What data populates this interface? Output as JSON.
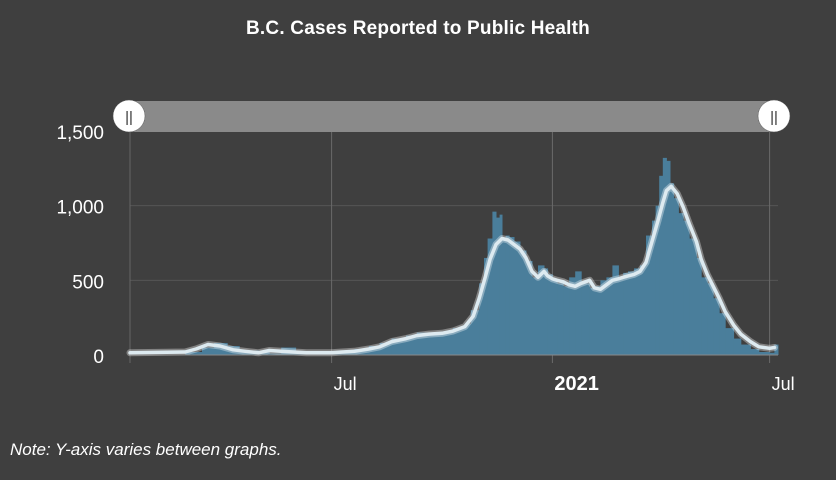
{
  "chart_data": {
    "type": "bar",
    "title": "B.C. Cases Reported to Public Health",
    "xlabel": "",
    "ylabel": "",
    "ylim": [
      0,
      1500
    ],
    "yticks": [
      0,
      500,
      1000,
      1500
    ],
    "ytick_labels": [
      "0",
      "500",
      "1,000",
      "1,500"
    ],
    "xticks": [
      {
        "date": "2020-07-01",
        "label": "Jul",
        "bold": false
      },
      {
        "date": "2021-01-01",
        "label": "2021",
        "bold": true
      },
      {
        "date": "2021-07-01",
        "label": "Jul",
        "bold": false
      }
    ],
    "xrange": [
      "2020-01-15",
      "2021-07-08"
    ],
    "grid": true,
    "series": [
      {
        "kind": "bar",
        "color": "#4a7e9b",
        "x": [
          "2020-01-15",
          "2020-03-01",
          "2020-03-15",
          "2020-03-25",
          "2020-04-05",
          "2020-04-15",
          "2020-05-01",
          "2020-05-10",
          "2020-05-20",
          "2020-06-01",
          "2020-06-15",
          "2020-07-01",
          "2020-07-10",
          "2020-07-20",
          "2020-08-01",
          "2020-08-10",
          "2020-08-20",
          "2020-09-01",
          "2020-09-10",
          "2020-09-20",
          "2020-10-01",
          "2020-10-10",
          "2020-10-20",
          "2020-10-25",
          "2020-11-01",
          "2020-11-05",
          "2020-11-08",
          "2020-11-12",
          "2020-11-15",
          "2020-11-18",
          "2020-11-20",
          "2020-11-23",
          "2020-11-26",
          "2020-11-30",
          "2020-12-05",
          "2020-12-10",
          "2020-12-15",
          "2020-12-20",
          "2020-12-25",
          "2020-12-28",
          "2021-01-01",
          "2021-01-05",
          "2021-01-10",
          "2021-01-15",
          "2021-01-20",
          "2021-01-25",
          "2021-02-01",
          "2021-02-05",
          "2021-02-10",
          "2021-02-15",
          "2021-02-20",
          "2021-02-25",
          "2021-03-01",
          "2021-03-05",
          "2021-03-10",
          "2021-03-15",
          "2021-03-20",
          "2021-03-25",
          "2021-03-28",
          "2021-03-31",
          "2021-04-03",
          "2021-04-06",
          "2021-04-09",
          "2021-04-12",
          "2021-04-16",
          "2021-04-20",
          "2021-04-25",
          "2021-05-01",
          "2021-05-05",
          "2021-05-10",
          "2021-05-15",
          "2021-05-20",
          "2021-05-25",
          "2021-06-01",
          "2021-06-07",
          "2021-06-15",
          "2021-06-22",
          "2021-07-01",
          "2021-07-05"
        ],
        "values": [
          0,
          20,
          50,
          80,
          60,
          30,
          20,
          10,
          50,
          20,
          15,
          20,
          25,
          40,
          60,
          80,
          110,
          130,
          150,
          140,
          150,
          180,
          210,
          300,
          480,
          650,
          780,
          960,
          920,
          940,
          780,
          800,
          790,
          760,
          700,
          630,
          520,
          600,
          580,
          540,
          500,
          480,
          460,
          520,
          560,
          480,
          450,
          460,
          500,
          520,
          600,
          520,
          550,
          560,
          580,
          600,
          800,
          900,
          1000,
          1200,
          1320,
          1300,
          1150,
          1050,
          950,
          900,
          780,
          650,
          520,
          480,
          380,
          280,
          180,
          110,
          70,
          40,
          20,
          15,
          70
        ]
      },
      {
        "kind": "line",
        "name": "",
        "color": "#ddeaf0",
        "x": [
          "2020-01-15",
          "2020-03-01",
          "2020-03-10",
          "2020-03-20",
          "2020-03-30",
          "2020-04-10",
          "2020-04-20",
          "2020-05-01",
          "2020-05-10",
          "2020-05-20",
          "2020-05-30",
          "2020-06-10",
          "2020-06-20",
          "2020-07-01",
          "2020-07-10",
          "2020-07-20",
          "2020-08-01",
          "2020-08-10",
          "2020-08-20",
          "2020-09-01",
          "2020-09-10",
          "2020-09-20",
          "2020-10-01",
          "2020-10-10",
          "2020-10-20",
          "2020-10-27",
          "2020-11-01",
          "2020-11-06",
          "2020-11-10",
          "2020-11-15",
          "2020-11-20",
          "2020-11-25",
          "2020-11-30",
          "2020-12-05",
          "2020-12-10",
          "2020-12-15",
          "2020-12-20",
          "2020-12-25",
          "2020-12-28",
          "2021-01-01",
          "2021-01-05",
          "2021-01-10",
          "2021-01-15",
          "2021-01-20",
          "2021-01-25",
          "2021-02-01",
          "2021-02-05",
          "2021-02-10",
          "2021-02-15",
          "2021-02-20",
          "2021-02-25",
          "2021-03-01",
          "2021-03-05",
          "2021-03-10",
          "2021-03-15",
          "2021-03-20",
          "2021-03-25",
          "2021-03-30",
          "2021-04-03",
          "2021-04-06",
          "2021-04-10",
          "2021-04-15",
          "2021-04-20",
          "2021-04-25",
          "2021-05-01",
          "2021-05-05",
          "2021-05-10",
          "2021-05-15",
          "2021-05-20",
          "2021-05-25",
          "2021-06-01",
          "2021-06-07",
          "2021-06-15",
          "2021-06-22",
          "2021-07-01",
          "2021-07-05"
        ],
        "values": [
          15,
          20,
          40,
          70,
          60,
          35,
          25,
          15,
          30,
          25,
          20,
          15,
          15,
          15,
          20,
          25,
          40,
          55,
          90,
          110,
          130,
          140,
          145,
          160,
          190,
          260,
          380,
          520,
          640,
          740,
          780,
          770,
          740,
          710,
          650,
          560,
          520,
          560,
          530,
          510,
          500,
          490,
          470,
          460,
          480,
          500,
          450,
          440,
          470,
          500,
          510,
          520,
          530,
          540,
          560,
          620,
          760,
          900,
          1020,
          1100,
          1130,
          1080,
          990,
          880,
          760,
          640,
          540,
          460,
          380,
          290,
          200,
          140,
          90,
          55,
          45,
          50
        ]
      }
    ],
    "range_slider": {
      "start_label": "||",
      "end_label": "||"
    },
    "note": "Note: Y-axis varies between graphs."
  }
}
